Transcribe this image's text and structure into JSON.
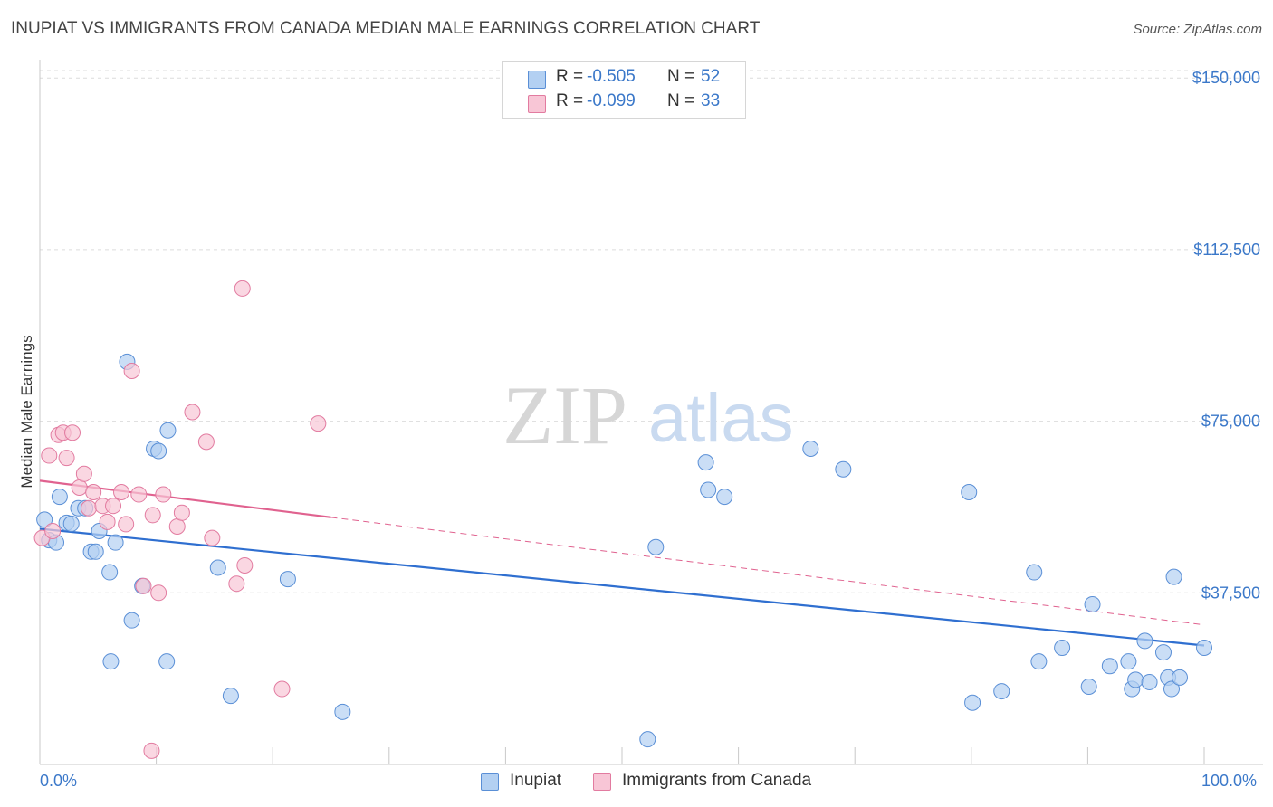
{
  "header": {
    "title": "INUPIAT VS IMMIGRANTS FROM CANADA MEDIAN MALE EARNINGS CORRELATION CHART",
    "source": "Source: ZipAtlas.com"
  },
  "stats": {
    "row1": {
      "r_label": "R =",
      "r_value": "-0.505",
      "n_label": "N =",
      "n_value": "52"
    },
    "row2": {
      "r_label": "R =",
      "r_value": "-0.099",
      "n_label": "N =",
      "n_value": "33"
    }
  },
  "watermark": {
    "zip": "ZIP",
    "atlas": "atlas"
  },
  "colors": {
    "blue_fill": "#b3d0f2",
    "blue_stroke": "#5a8fd6",
    "blue_line": "#2f6fd0",
    "pink_fill": "#f8c6d6",
    "pink_stroke": "#e27ba0",
    "pink_line": "#e0628f",
    "tick_text": "#3b78c9",
    "grid": "#dcdcdc"
  },
  "chart_data": {
    "type": "scatter",
    "title": "INUPIAT VS IMMIGRANTS FROM CANADA MEDIAN MALE EARNINGS CORRELATION CHART",
    "xlabel": "",
    "ylabel": "Median Male Earnings",
    "x_tick_labels": [
      "0.0%",
      "100.0%"
    ],
    "y_ticks": [
      {
        "value": 37500,
        "label": "$37,500"
      },
      {
        "value": 75000,
        "label": "$75,000"
      },
      {
        "value": 112500,
        "label": "$112,500"
      },
      {
        "value": 150000,
        "label": "$150,000"
      }
    ],
    "xlim": [
      0,
      100
    ],
    "ylim": [
      0,
      154000
    ],
    "grid": true,
    "legend_position": "bottom-center",
    "series": [
      {
        "name": "Inupiat",
        "color": "#b3d0f2",
        "points": [
          [
            0.4,
            53500
          ],
          [
            0.8,
            49000
          ],
          [
            1.4,
            48500
          ],
          [
            1.7,
            58500
          ],
          [
            2.3,
            52800
          ],
          [
            2.7,
            52600
          ],
          [
            3.3,
            56000
          ],
          [
            3.9,
            56000
          ],
          [
            4.4,
            46500
          ],
          [
            4.8,
            46500
          ],
          [
            5.1,
            51000
          ],
          [
            6.0,
            42000
          ],
          [
            6.1,
            22500
          ],
          [
            6.5,
            48500
          ],
          [
            7.5,
            88000
          ],
          [
            7.9,
            31500
          ],
          [
            8.8,
            39000
          ],
          [
            9.8,
            69000
          ],
          [
            10.2,
            68500
          ],
          [
            10.9,
            22500
          ],
          [
            11.0,
            73000
          ],
          [
            15.3,
            43000
          ],
          [
            16.4,
            15000
          ],
          [
            21.3,
            40500
          ],
          [
            26.0,
            11500
          ],
          [
            52.2,
            5500
          ],
          [
            52.9,
            47500
          ],
          [
            57.2,
            66000
          ],
          [
            57.4,
            60000
          ],
          [
            58.8,
            58500
          ],
          [
            66.2,
            69000
          ],
          [
            69.0,
            64500
          ],
          [
            79.8,
            59500
          ],
          [
            80.1,
            13500
          ],
          [
            82.6,
            16000
          ],
          [
            85.4,
            42000
          ],
          [
            85.8,
            22500
          ],
          [
            87.8,
            25500
          ],
          [
            90.1,
            17000
          ],
          [
            90.4,
            35000
          ],
          [
            91.9,
            21500
          ],
          [
            93.5,
            22500
          ],
          [
            93.8,
            16500
          ],
          [
            94.1,
            18500
          ],
          [
            94.9,
            27000
          ],
          [
            95.3,
            18000
          ],
          [
            96.5,
            24500
          ],
          [
            96.9,
            19000
          ],
          [
            97.2,
            16500
          ],
          [
            97.4,
            41000
          ],
          [
            97.9,
            19000
          ],
          [
            100.0,
            25500
          ]
        ]
      },
      {
        "name": "Immigrants from Canada",
        "color": "#f8c6d6",
        "points": [
          [
            0.2,
            49500
          ],
          [
            0.8,
            67500
          ],
          [
            1.1,
            51000
          ],
          [
            1.6,
            72000
          ],
          [
            2.0,
            72500
          ],
          [
            2.3,
            67000
          ],
          [
            2.8,
            72500
          ],
          [
            3.4,
            60500
          ],
          [
            3.8,
            63500
          ],
          [
            4.2,
            56000
          ],
          [
            4.6,
            59500
          ],
          [
            5.4,
            56500
          ],
          [
            5.8,
            53000
          ],
          [
            6.3,
            56500
          ],
          [
            7.0,
            59500
          ],
          [
            7.4,
            52500
          ],
          [
            7.9,
            86000
          ],
          [
            8.5,
            59000
          ],
          [
            8.9,
            39000
          ],
          [
            9.6,
            3000
          ],
          [
            9.7,
            54500
          ],
          [
            10.2,
            37500
          ],
          [
            10.6,
            59000
          ],
          [
            11.8,
            52000
          ],
          [
            12.2,
            55000
          ],
          [
            13.1,
            77000
          ],
          [
            14.3,
            70500
          ],
          [
            14.8,
            49500
          ],
          [
            16.9,
            39500
          ],
          [
            17.4,
            104000
          ],
          [
            17.6,
            43500
          ],
          [
            20.8,
            16500
          ],
          [
            23.9,
            74500
          ]
        ]
      }
    ],
    "trendlines": [
      {
        "series": "Inupiat",
        "style": "solid",
        "x": [
          0,
          100
        ],
        "y": [
          51500,
          26000
        ]
      },
      {
        "series": "Immigrants from Canada",
        "style": "solid",
        "x": [
          0,
          25
        ],
        "y": [
          62000,
          54000
        ]
      },
      {
        "series": "Immigrants from Canada",
        "style": "dashed",
        "x": [
          25,
          100
        ],
        "y": [
          54000,
          30500
        ]
      }
    ]
  },
  "legend": {
    "item1": "Inupiat",
    "item2": "Immigrants from Canada"
  }
}
